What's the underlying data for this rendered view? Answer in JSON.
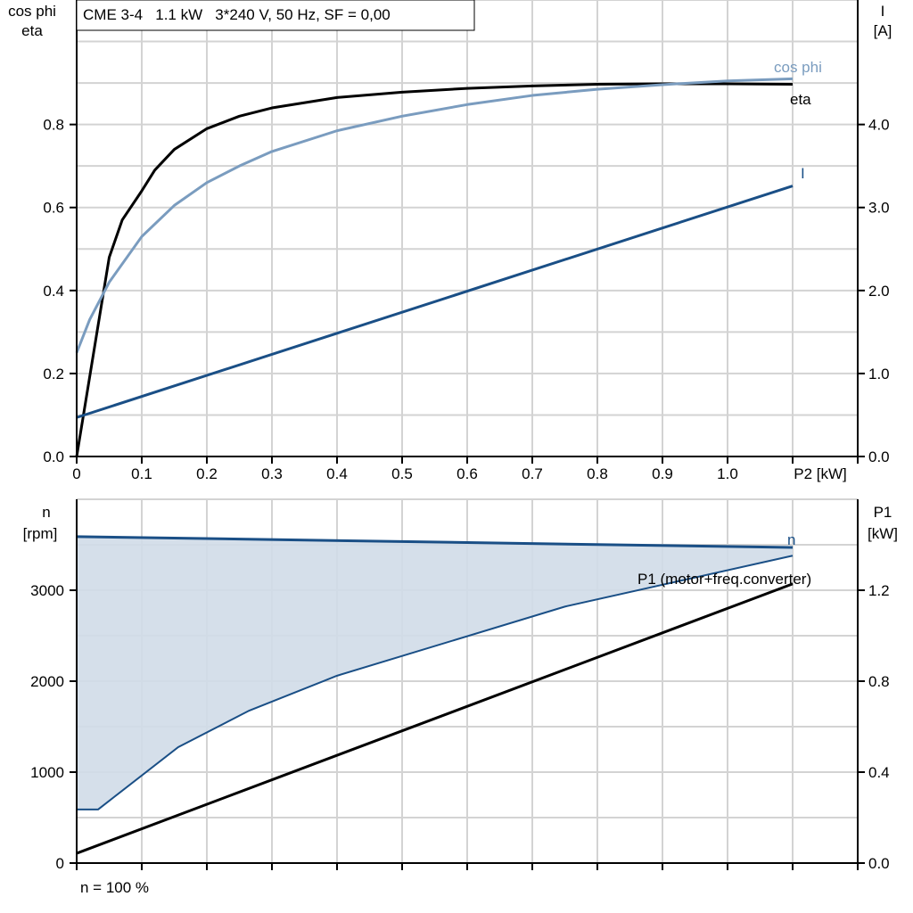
{
  "chart_data": [
    {
      "type": "line",
      "title": "CME 3-4   1.1 kW   3*240 V, 50 Hz, SF = 0,00",
      "xlabel": "P2 [kW]",
      "ylabel_left": [
        "cos phi",
        "eta"
      ],
      "ylabel_right": [
        "I",
        "[A]"
      ],
      "xlim": [
        0,
        1.2
      ],
      "ylim_left": [
        0,
        1.1
      ],
      "ylim_right": [
        0,
        5.5
      ],
      "x_ticks": [
        "0",
        "0.1",
        "0.2",
        "0.3",
        "0.4",
        "0.5",
        "0.6",
        "0.7",
        "0.8",
        "0.9",
        "1.0"
      ],
      "y_ticks_left": [
        "0.0",
        "0.2",
        "0.4",
        "0.6",
        "0.8"
      ],
      "y_ticks_right": [
        "0.0",
        "1.0",
        "2.0",
        "3.0",
        "4.0"
      ],
      "grid": true,
      "series": [
        {
          "name": "eta",
          "axis": "left",
          "color": "#000000",
          "x": [
            0,
            0.05,
            0.07,
            0.1,
            0.12,
            0.15,
            0.2,
            0.25,
            0.3,
            0.4,
            0.5,
            0.6,
            0.7,
            0.8,
            0.9,
            1.0,
            1.1
          ],
          "y": [
            0,
            0.48,
            0.57,
            0.64,
            0.69,
            0.74,
            0.79,
            0.82,
            0.84,
            0.865,
            0.878,
            0.887,
            0.893,
            0.897,
            0.898,
            0.898,
            0.897
          ]
        },
        {
          "name": "cos phi",
          "axis": "left",
          "color": "#7a9cbf",
          "x": [
            0,
            0.02,
            0.05,
            0.1,
            0.15,
            0.2,
            0.25,
            0.3,
            0.4,
            0.5,
            0.6,
            0.7,
            0.8,
            0.9,
            1.0,
            1.1
          ],
          "y": [
            0.25,
            0.33,
            0.42,
            0.53,
            0.605,
            0.66,
            0.7,
            0.735,
            0.785,
            0.82,
            0.848,
            0.87,
            0.885,
            0.896,
            0.905,
            0.91
          ]
        },
        {
          "name": "I",
          "axis": "right",
          "color": "#1a4f86",
          "x": [
            0,
            1.1
          ],
          "y": [
            0.47,
            3.26
          ]
        }
      ]
    },
    {
      "type": "line",
      "xlim": [
        0,
        1.2
      ],
      "ylabel_left": [
        "n",
        "[rpm]"
      ],
      "ylabel_right": [
        "P1",
        "[kW]"
      ],
      "ylim_left": [
        0,
        4000
      ],
      "ylim_right": [
        0,
        1.6
      ],
      "y_ticks_left": [
        "0",
        "1000",
        "2000",
        "3000"
      ],
      "y_ticks_right": [
        "0.0",
        "0.4",
        "0.8",
        "1.2"
      ],
      "grid": true,
      "footnote": "n = 100 %",
      "band": {
        "color": "#d0dce8",
        "upper": {
          "x": [
            0,
            1.1
          ],
          "y": [
            3590,
            3470
          ]
        },
        "lower": {
          "x": [
            0,
            0.033,
            0.156,
            0.265,
            0.4,
            0.75,
            1.1
          ],
          "y": [
            590,
            590,
            1275,
            1676,
            2060,
            2820,
            3380
          ]
        }
      },
      "series": [
        {
          "name": "n",
          "axis": "left",
          "color": "#1a4f86",
          "x": [
            0,
            1.1
          ],
          "y": [
            3590,
            3470
          ]
        },
        {
          "name": "P1 (motor+freq.converter)",
          "axis": "right",
          "color": "#000000",
          "x": [
            0,
            1.1
          ],
          "y": [
            0.043,
            1.228
          ]
        }
      ]
    }
  ]
}
